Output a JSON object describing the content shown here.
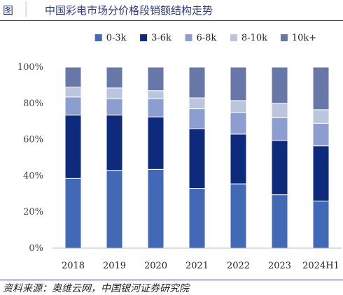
{
  "header": {
    "label": "图",
    "title": "中国彩电市场分价格段销额结构走势"
  },
  "footer": {
    "source": "资料来源：奥维云网，中国银河证券研究院"
  },
  "chart_data": {
    "type": "bar",
    "stacked": true,
    "categories": [
      "2018",
      "2019",
      "2020",
      "2021",
      "2022",
      "2023",
      "2024H1"
    ],
    "series": [
      {
        "name": "0-3k",
        "color": "#4169b6",
        "values": [
          38.5,
          43,
          43.5,
          33,
          35.5,
          29.5,
          26
        ]
      },
      {
        "name": "3-6k",
        "color": "#0e2a7c",
        "values": [
          35,
          30.5,
          29,
          33,
          27.5,
          30,
          30.5
        ]
      },
      {
        "name": "6-8k",
        "color": "#8c9ecf",
        "values": [
          10,
          9,
          10,
          11,
          12,
          12.5,
          12.5
        ]
      },
      {
        "name": "8-10k",
        "color": "#bcc5de",
        "values": [
          5.5,
          6,
          4.5,
          6,
          6.5,
          8,
          7.5
        ]
      },
      {
        "name": "10k+",
        "color": "#6677a8",
        "values": [
          11,
          11.5,
          13,
          17,
          18.5,
          20,
          23.5
        ]
      }
    ],
    "ylim": [
      0,
      100
    ],
    "yticks": [
      "0%",
      "20%",
      "40%",
      "60%",
      "80%",
      "100%"
    ],
    "legend_position": "top"
  }
}
